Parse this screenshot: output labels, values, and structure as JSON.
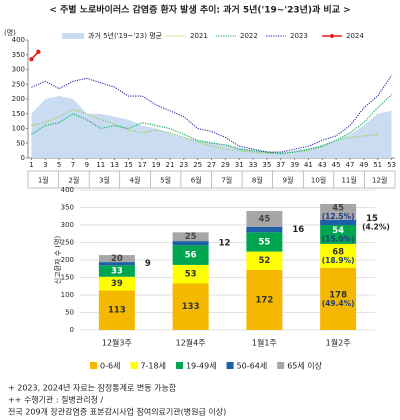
{
  "chart_data": [
    {
      "type": "line",
      "title": "< 주별 노로바이러스 감염증 환자 발생 추이: 과거 5년('19~'23년)과 비교 >",
      "y_label": "(명)",
      "x": [
        1,
        3,
        5,
        7,
        9,
        11,
        13,
        15,
        17,
        19,
        21,
        23,
        25,
        27,
        29,
        31,
        33,
        35,
        37,
        39,
        41,
        43,
        45,
        47,
        49,
        51,
        53
      ],
      "xlim": [
        0.5,
        53.5
      ],
      "xticks": [
        1,
        3,
        5,
        7,
        9,
        11,
        13,
        15,
        17,
        19,
        21,
        23,
        25,
        27,
        29,
        31,
        33,
        35,
        37,
        39,
        41,
        43,
        45,
        47,
        49,
        51,
        53
      ],
      "ylim": [
        0,
        400
      ],
      "yticks": [
        0,
        50,
        100,
        150,
        200,
        250,
        300,
        350,
        400
      ],
      "month_labels": [
        "1월",
        "2월",
        "3월",
        "4월",
        "5월",
        "6월",
        "7월",
        "8월",
        "9월",
        "10월",
        "11월",
        "12월"
      ],
      "series": [
        {
          "name": "과거 5년('19~'23) 평균",
          "kind": "area",
          "color": "#c9dcf2",
          "values": [
            150,
            200,
            210,
            200,
            150,
            150,
            140,
            130,
            110,
            100,
            85,
            70,
            60,
            55,
            45,
            35,
            25,
            20,
            20,
            25,
            30,
            45,
            60,
            80,
            110,
            150,
            160
          ]
        },
        {
          "name": "2021",
          "kind": "dotted",
          "color": "#92d050",
          "values": [
            110,
            120,
            140,
            165,
            150,
            130,
            115,
            95,
            85,
            95,
            85,
            70,
            55,
            40,
            30,
            25,
            20,
            15,
            15,
            20,
            25,
            40,
            60,
            70,
            75,
            80,
            null
          ]
        },
        {
          "name": "2022",
          "kind": "dotted",
          "color": "#00b050",
          "values": [
            80,
            110,
            120,
            150,
            130,
            100,
            110,
            100,
            120,
            110,
            100,
            80,
            60,
            50,
            45,
            30,
            25,
            20,
            15,
            20,
            30,
            40,
            60,
            85,
            120,
            170,
            215
          ]
        },
        {
          "name": "2023",
          "kind": "dotted",
          "color": "#2a2aa0",
          "values": [
            240,
            260,
            235,
            260,
            270,
            255,
            240,
            210,
            210,
            180,
            160,
            140,
            100,
            90,
            70,
            40,
            30,
            20,
            20,
            30,
            40,
            60,
            75,
            110,
            170,
            210,
            280
          ]
        },
        {
          "name": "2024",
          "kind": "line",
          "color": "#e81e1e",
          "x": [
            1,
            2
          ],
          "values": [
            335,
            360
          ]
        }
      ]
    },
    {
      "type": "bar",
      "stacked": true,
      "y_label": "신고환자 수 (명)",
      "categories": [
        "12월3주",
        "12월4주",
        "1월1주",
        "1월2주"
      ],
      "ylim": [
        0,
        400
      ],
      "yticks": [
        0,
        50,
        100,
        150,
        200,
        250,
        300,
        350,
        400
      ],
      "series": [
        {
          "name": "0-6세",
          "color": "#f5b800",
          "values": [
            113,
            133,
            172,
            178
          ],
          "share_labels": [
            null,
            null,
            null,
            "(49.4%)"
          ]
        },
        {
          "name": "7-18세",
          "color": "#ffff00",
          "values": [
            39,
            53,
            52,
            68
          ],
          "share_labels": [
            null,
            null,
            null,
            "(18.9%)"
          ]
        },
        {
          "name": "19-49세",
          "color": "#00a550",
          "values": [
            33,
            56,
            55,
            54
          ],
          "share_labels": [
            null,
            null,
            null,
            "(15.0%)"
          ]
        },
        {
          "name": "50-64세",
          "color": "#1f5fa8",
          "values": [
            9,
            12,
            16,
            15
          ],
          "share_labels": [
            null,
            null,
            null,
            "(4.2%)"
          ]
        },
        {
          "name": "65세 이상",
          "color": "#a6a6a6",
          "values": [
            20,
            25,
            45,
            45
          ],
          "share_labels": [
            null,
            null,
            null,
            "(12.5%)"
          ]
        }
      ]
    }
  ],
  "notes": [
    "+ 2023, 2024년 자료는 잠정통계로 변동 가능함",
    "++ 수행기관 : 질병관리청 /",
    "전국 209개 장관감염증 표본감시사업 참여의료기관(병원급 이상)"
  ]
}
